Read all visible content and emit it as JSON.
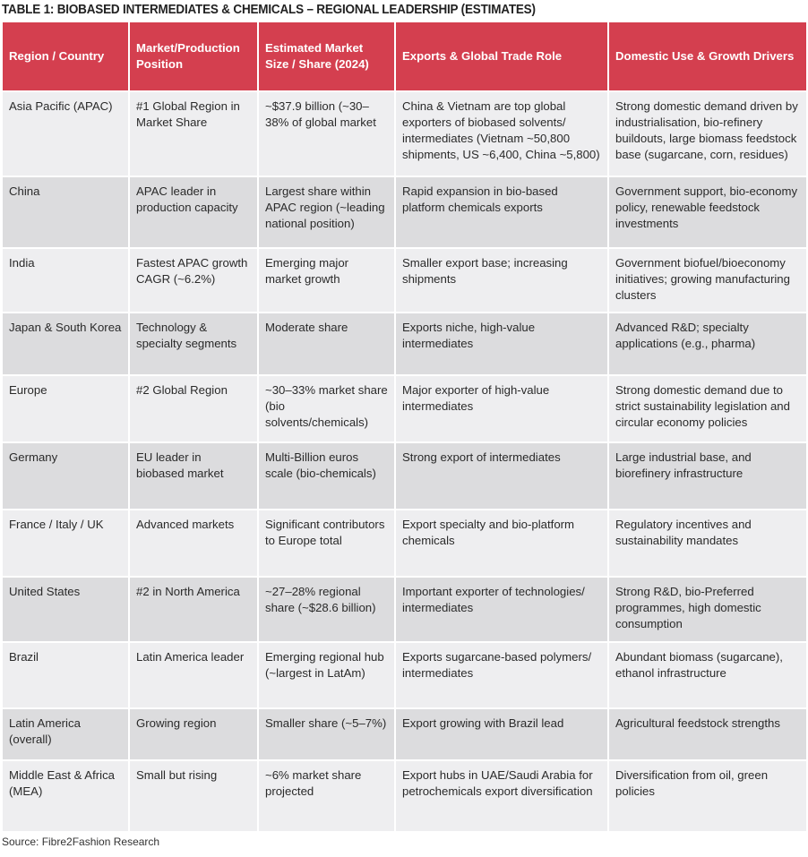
{
  "title": "TABLE 1: BIOBASED INTERMEDIATES & CHEMICALS – REGIONAL LEADERSHIP (ESTIMATES)",
  "colors": {
    "header": "#d43f4f",
    "row_light": "#eeeef0",
    "row_dark": "#dcdcde"
  },
  "headers": [
    "Region / Country",
    "Market/Production Position",
    "Estimated Market Size / Share (2024)",
    "Exports & Global Trade Role",
    "Domestic Use & Growth Drivers"
  ],
  "rows": [
    [
      "Asia Pacific (APAC)",
      "#1 Global Region in Market Share",
      "~$37.9 billion (~30–38% of global market",
      "China & Vietnam are top global exporters of biobased solvents/ intermediates (Vietnam ~50,800 shipments, US ~6,400, China ~5,800)",
      "Strong domestic demand driven by industrialisation, bio-refinery buildouts, large biomass feedstock base (sugarcane, corn, residues)"
    ],
    [
      "China",
      "APAC leader in production capacity",
      "Largest share within APAC region (~leading national position)",
      "Rapid expansion in bio-based platform chemicals exports",
      "Government support, bio-economy policy, renewable feedstock investments"
    ],
    [
      "India",
      "Fastest APAC growth CAGR (~6.2%)",
      "Emerging major market growth",
      "Smaller export base; increasing shipments",
      "Government biofuel/bioeconomy initiatives; growing manufacturing clusters"
    ],
    [
      "Japan & South Korea",
      "Technology & specialty segments",
      "Moderate share",
      "Exports niche, high-value intermediates",
      "Advanced R&D; specialty applications (e.g., pharma)"
    ],
    [
      "Europe",
      "#2 Global Region",
      "~30–33% market share (bio solvents/chemicals)",
      "Major exporter of high-value intermediates",
      "Strong domestic demand due to strict sustainability legislation and circular economy policies"
    ],
    [
      "Germany",
      "EU leader in biobased market",
      "Multi-Billion euros scale (bio-chemicals)",
      "Strong export of intermediates",
      "Large industrial base, and biorefinery infrastructure"
    ],
    [
      "France / Italy / UK",
      "Advanced markets",
      "Significant contributors to Europe total",
      "Export specialty and bio-platform chemicals",
      "Regulatory incentives and sustainability mandates"
    ],
    [
      "United States",
      "#2 in North America",
      "~27–28% regional share (~$28.6 billion)",
      "Important exporter of technologies/ intermediates",
      "Strong R&D, bio-Preferred programmes, high domestic consumption"
    ],
    [
      "Brazil",
      "Latin America leader",
      "Emerging regional hub (~largest in LatAm)",
      "Exports sugarcane-based polymers/ intermediates",
      "Abundant biomass (sugarcane), ethanol infrastructure"
    ],
    [
      "Latin America (overall)",
      "Growing region",
      "Smaller share (~5–7%)",
      "Export growing with Brazil lead",
      "Agricultural feedstock strengths"
    ],
    [
      "Middle East & Africa (MEA)",
      "Small but rising",
      "~6% market share projected",
      "Export hubs in UAE/Saudi Arabia for petrochemicals export diversification",
      "Diversification from oil, green policies"
    ]
  ],
  "source": "Source: Fibre2Fashion Research"
}
